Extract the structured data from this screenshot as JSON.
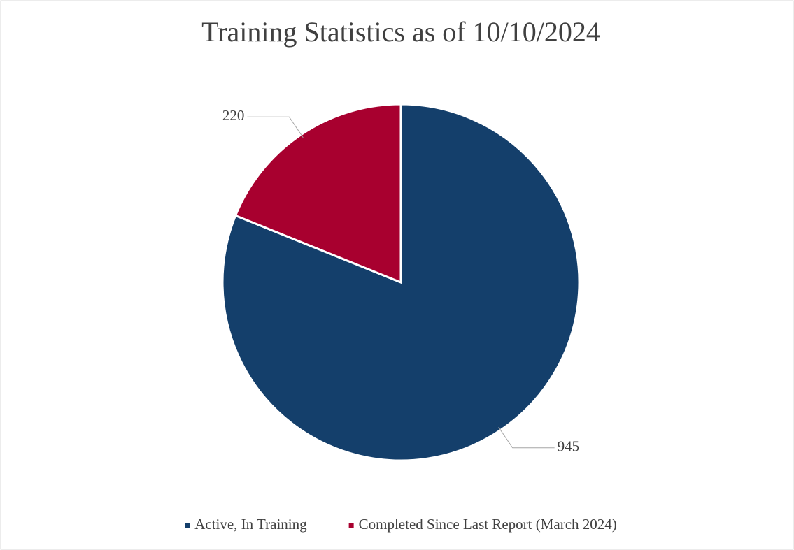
{
  "chart_data": {
    "type": "pie",
    "title": "Training Statistics as of 10/10/2024",
    "categories": [
      "Active, In Training",
      "Completed Since Last Report (March 2024)"
    ],
    "values": [
      945,
      220
    ],
    "colors": [
      "#143f6b",
      "#a8002f"
    ],
    "legend": "bottom"
  }
}
